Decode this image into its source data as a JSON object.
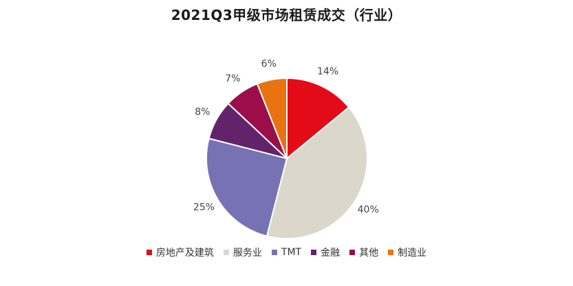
{
  "chart_data": {
    "type": "pie",
    "title": "2021Q3甲级市场租赁成交（行业）",
    "categories": [
      "房地产及建筑",
      "服务业",
      "TMT",
      "金融",
      "其他",
      "制造业"
    ],
    "values": [
      14,
      40,
      25,
      8,
      7,
      6
    ],
    "labels": [
      "14%",
      "40%",
      "25%",
      "8%",
      "7%",
      "6%"
    ],
    "colors": [
      "#E30B17",
      "#DCD7CB",
      "#7672B4",
      "#62236B",
      "#9B0E4A",
      "#E97211"
    ],
    "start_angle_deg": 0,
    "direction": "clockwise",
    "legend": "bottom"
  }
}
